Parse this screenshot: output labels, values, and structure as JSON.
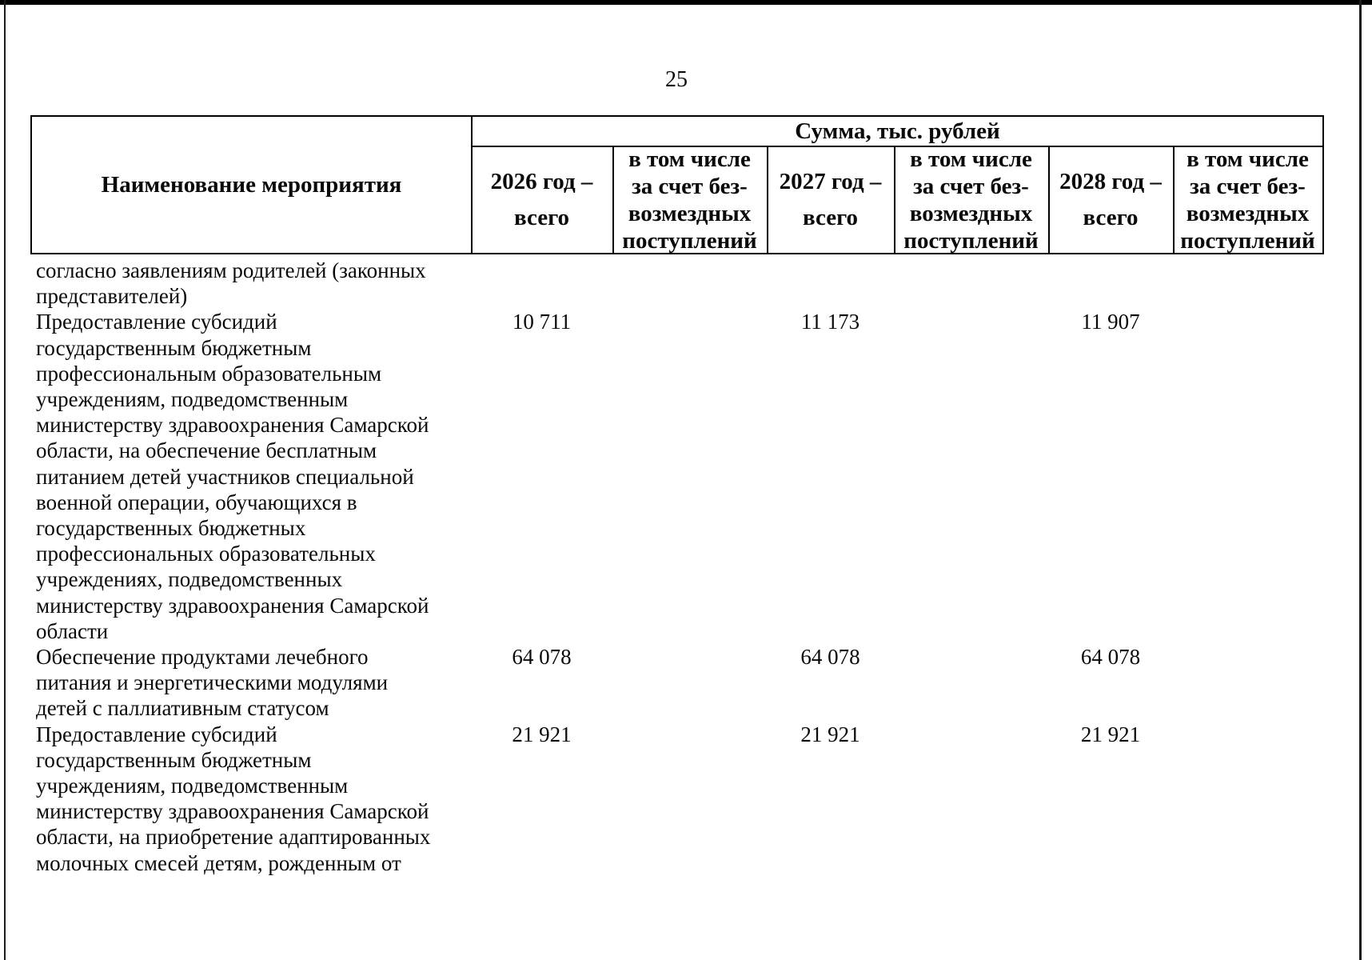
{
  "colors": {
    "ink": "#0a0a0a",
    "paper": "#ffffff",
    "frame": "#000000"
  },
  "page": {
    "number": "25"
  },
  "table": {
    "name_header": "Наименование мероприятия",
    "sum_header": "Сумма, тыс. рублей",
    "col_headers": {
      "year2026": [
        "2026 год –",
        "всего"
      ],
      "incl2026": [
        "в том числе",
        "за счет без-",
        "возмездных",
        "поступлений"
      ],
      "year2027": [
        "2027 год –",
        "всего"
      ],
      "incl2027": [
        "в том числе",
        "за счет без-",
        "возмездных",
        "поступлений"
      ],
      "year2028": [
        "2028 год –",
        "всего"
      ],
      "incl2028": [
        "в том числе",
        "за счет без-",
        "возмездных",
        "поступлений"
      ]
    },
    "rows": [
      {
        "lines": [
          "согласно заявлениям родителей (законных",
          "представителей)"
        ],
        "v2026": "",
        "v2027": "",
        "v2028": ""
      },
      {
        "lines": [
          "Предоставление субсидий",
          "государственным бюджетным",
          "профессиональным образовательным",
          "учреждениям, подведомственным",
          "министерству здравоохранения Самарской",
          "области, на обеспечение бесплатным",
          "питанием детей участников специальной",
          "военной операции, обучающихся в",
          "государственных бюджетных",
          "профессиональных образовательных",
          "учреждениях, подведомственных",
          "министерству здравоохранения Самарской",
          "области"
        ],
        "v2026": "10 711",
        "v2027": "11 173",
        "v2028": "11 907"
      },
      {
        "lines": [
          "Обеспечение продуктами лечебного",
          "питания и энергетическими модулями",
          "детей с паллиативным статусом"
        ],
        "v2026": "64 078",
        "v2027": "64 078",
        "v2028": "64 078"
      },
      {
        "lines": [
          "Предоставление субсидий",
          "государственным бюджетным",
          "учреждениям, подведомственным",
          "министерству здравоохранения Самарской",
          "области, на приобретение адаптированных",
          "молочных смесей детям, рожденным от"
        ],
        "v2026": "21 921",
        "v2027": "21 921",
        "v2028": "21 921"
      }
    ]
  }
}
